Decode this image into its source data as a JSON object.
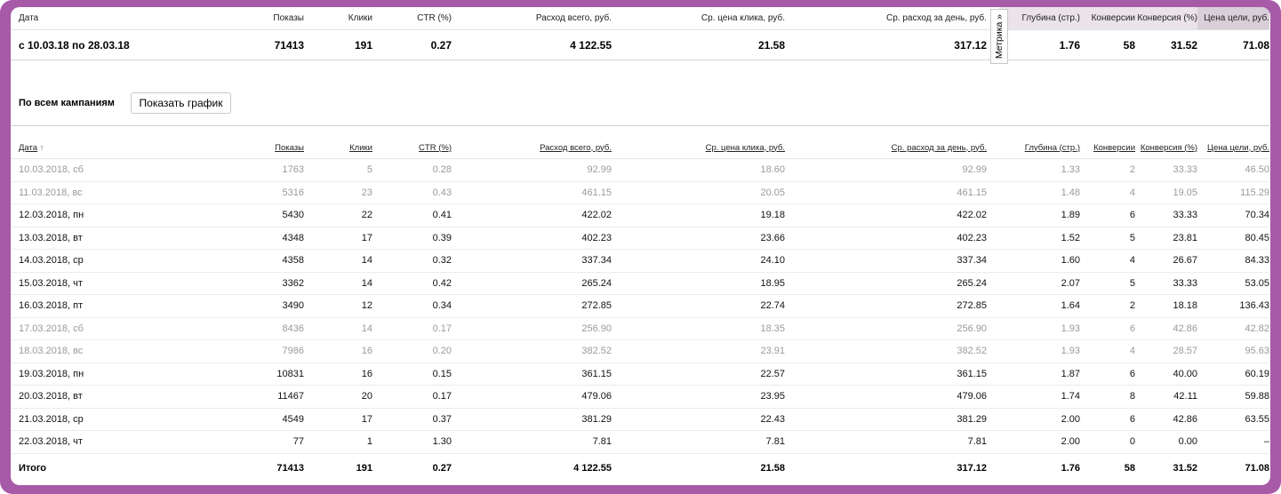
{
  "columns": {
    "date": "Дата",
    "shows": "Показы",
    "clicks": "Клики",
    "ctr": "CTR (%)",
    "spend": "Расход всего, руб.",
    "avg_cpc": "Ср. цена клика, руб.",
    "avg_daily": "Ср. расход за день, руб.",
    "depth": "Глубина (стр.)",
    "conv": "Конверсии",
    "conv_rate": "Конверсия (%)",
    "goal_cost": "Цена цели, руб."
  },
  "summary": {
    "period": "с 10.03.18 по 28.03.18",
    "shows": "71413",
    "clicks": "191",
    "ctr": "0.27",
    "spend": "4 122.55",
    "avg_cpc": "21.58",
    "avg_daily": "317.12",
    "depth": "1.76",
    "conv": "58",
    "conv_rate": "31.52",
    "goal_cost": "71.08"
  },
  "metrika_tab": "Метрика »",
  "campaign_label": "По всем кампаниям",
  "chart_button": "Показать график",
  "sort_indicator": "↑",
  "rows": [
    {
      "date": "10.03.2018, сб",
      "shows": "1763",
      "clicks": "5",
      "ctr": "0.28",
      "spend": "92.99",
      "avg_cpc": "18.60",
      "avg_daily": "92.99",
      "depth": "1.33",
      "conv": "2",
      "conv_rate": "33.33",
      "goal_cost": "46.50",
      "weekend": true
    },
    {
      "date": "11.03.2018, вс",
      "shows": "5316",
      "clicks": "23",
      "ctr": "0.43",
      "spend": "461.15",
      "avg_cpc": "20.05",
      "avg_daily": "461.15",
      "depth": "1.48",
      "conv": "4",
      "conv_rate": "19.05",
      "goal_cost": "115.29",
      "weekend": true
    },
    {
      "date": "12.03.2018, пн",
      "shows": "5430",
      "clicks": "22",
      "ctr": "0.41",
      "spend": "422.02",
      "avg_cpc": "19.18",
      "avg_daily": "422.02",
      "depth": "1.89",
      "conv": "6",
      "conv_rate": "33.33",
      "goal_cost": "70.34",
      "weekend": false
    },
    {
      "date": "13.03.2018, вт",
      "shows": "4348",
      "clicks": "17",
      "ctr": "0.39",
      "spend": "402.23",
      "avg_cpc": "23.66",
      "avg_daily": "402.23",
      "depth": "1.52",
      "conv": "5",
      "conv_rate": "23.81",
      "goal_cost": "80.45",
      "weekend": false
    },
    {
      "date": "14.03.2018, ср",
      "shows": "4358",
      "clicks": "14",
      "ctr": "0.32",
      "spend": "337.34",
      "avg_cpc": "24.10",
      "avg_daily": "337.34",
      "depth": "1.60",
      "conv": "4",
      "conv_rate": "26.67",
      "goal_cost": "84.33",
      "weekend": false
    },
    {
      "date": "15.03.2018, чт",
      "shows": "3362",
      "clicks": "14",
      "ctr": "0.42",
      "spend": "265.24",
      "avg_cpc": "18.95",
      "avg_daily": "265.24",
      "depth": "2.07",
      "conv": "5",
      "conv_rate": "33.33",
      "goal_cost": "53.05",
      "weekend": false
    },
    {
      "date": "16.03.2018, пт",
      "shows": "3490",
      "clicks": "12",
      "ctr": "0.34",
      "spend": "272.85",
      "avg_cpc": "22.74",
      "avg_daily": "272.85",
      "depth": "1.64",
      "conv": "2",
      "conv_rate": "18.18",
      "goal_cost": "136.43",
      "weekend": false
    },
    {
      "date": "17.03.2018, сб",
      "shows": "8436",
      "clicks": "14",
      "ctr": "0.17",
      "spend": "256.90",
      "avg_cpc": "18.35",
      "avg_daily": "256.90",
      "depth": "1.93",
      "conv": "6",
      "conv_rate": "42.86",
      "goal_cost": "42.82",
      "weekend": true
    },
    {
      "date": "18.03.2018, вс",
      "shows": "7986",
      "clicks": "16",
      "ctr": "0.20",
      "spend": "382.52",
      "avg_cpc": "23.91",
      "avg_daily": "382.52",
      "depth": "1.93",
      "conv": "4",
      "conv_rate": "28.57",
      "goal_cost": "95.63",
      "weekend": true
    },
    {
      "date": "19.03.2018, пн",
      "shows": "10831",
      "clicks": "16",
      "ctr": "0.15",
      "spend": "361.15",
      "avg_cpc": "22.57",
      "avg_daily": "361.15",
      "depth": "1.87",
      "conv": "6",
      "conv_rate": "40.00",
      "goal_cost": "60.19",
      "weekend": false
    },
    {
      "date": "20.03.2018, вт",
      "shows": "11467",
      "clicks": "20",
      "ctr": "0.17",
      "spend": "479.06",
      "avg_cpc": "23.95",
      "avg_daily": "479.06",
      "depth": "1.74",
      "conv": "8",
      "conv_rate": "42.11",
      "goal_cost": "59.88",
      "weekend": false
    },
    {
      "date": "21.03.2018, ср",
      "shows": "4549",
      "clicks": "17",
      "ctr": "0.37",
      "spend": "381.29",
      "avg_cpc": "22.43",
      "avg_daily": "381.29",
      "depth": "2.00",
      "conv": "6",
      "conv_rate": "42.86",
      "goal_cost": "63.55",
      "weekend": false
    },
    {
      "date": "22.03.2018, чт",
      "shows": "77",
      "clicks": "1",
      "ctr": "1.30",
      "spend": "7.81",
      "avg_cpc": "7.81",
      "avg_daily": "7.81",
      "depth": "2.00",
      "conv": "0",
      "conv_rate": "0.00",
      "goal_cost": "–",
      "weekend": false
    }
  ],
  "total": {
    "label": "Итого",
    "shows": "71413",
    "clicks": "191",
    "ctr": "0.27",
    "spend": "4 122.55",
    "avg_cpc": "21.58",
    "avg_daily": "317.12",
    "depth": "1.76",
    "conv": "58",
    "conv_rate": "31.52",
    "goal_cost": "71.08"
  }
}
